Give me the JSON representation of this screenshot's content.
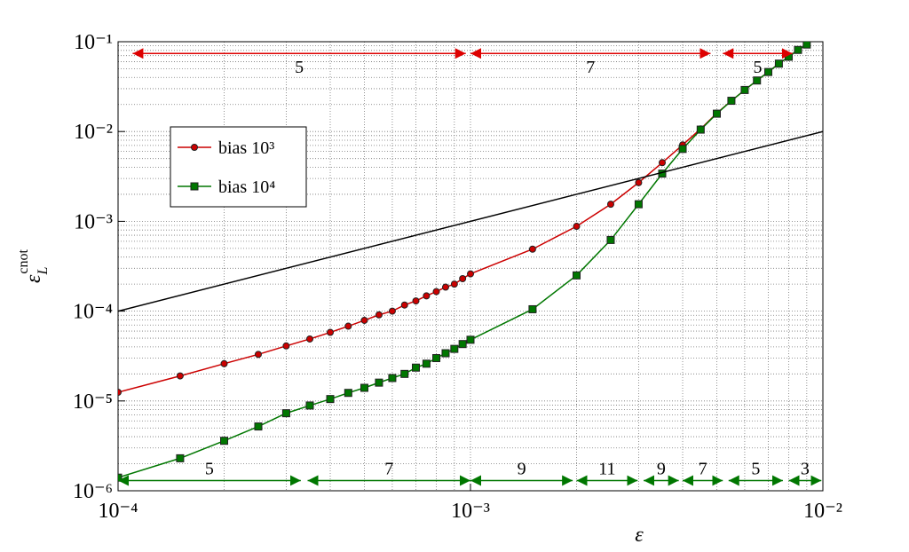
{
  "chart_data": {
    "type": "line",
    "xlabel": "ε",
    "ylabel": {
      "base": "ε",
      "sub": "L",
      "sup": "cnot"
    },
    "log_x": true,
    "log_y": true,
    "grid": true,
    "minor_grid": true,
    "legend": "upper left",
    "xlim": [
      0.0001,
      0.01
    ],
    "ylim": [
      1e-06,
      0.1
    ],
    "xticks": [
      {
        "value": 0.0001,
        "label": "10⁻⁴"
      },
      {
        "value": 0.001,
        "label": "10⁻³"
      },
      {
        "value": 0.01,
        "label": "10⁻²"
      }
    ],
    "yticks": [
      {
        "value": 1e-06,
        "label": "10⁻⁶"
      },
      {
        "value": 1e-05,
        "label": "10⁻⁵"
      },
      {
        "value": 0.0001,
        "label": "10⁻⁴"
      },
      {
        "value": 0.001,
        "label": "10⁻³"
      },
      {
        "value": 0.01,
        "label": "10⁻²"
      },
      {
        "value": 0.1,
        "label": "10⁻¹"
      }
    ],
    "series": [
      {
        "name": "bias 10³",
        "color": "#cc0000",
        "marker": "circle",
        "x": [
          0.0001,
          0.00015,
          0.0002,
          0.00025,
          0.0003,
          0.00035,
          0.0004,
          0.00045,
          0.0005,
          0.00055,
          0.0006,
          0.00065,
          0.0007,
          0.00075,
          0.0008,
          0.00085,
          0.0009,
          0.00095,
          0.001,
          0.0015,
          0.002,
          0.0025,
          0.003,
          0.0035,
          0.004,
          0.0045,
          0.005,
          0.0055,
          0.006,
          0.0065,
          0.007,
          0.0075,
          0.008,
          0.0085,
          0.009
        ],
        "values": [
          1.25e-05,
          1.9e-05,
          2.6e-05,
          3.3e-05,
          4.1e-05,
          4.9e-05,
          5.8e-05,
          6.8e-05,
          7.9e-05,
          9.1e-05,
          0.0001,
          0.000117,
          0.00013,
          0.000148,
          0.000165,
          0.000185,
          0.0002,
          0.00023,
          0.00026,
          0.00049,
          0.00088,
          0.00155,
          0.0027,
          0.0045,
          0.0071,
          0.0107,
          0.016,
          0.022,
          0.029,
          0.037,
          0.046,
          0.057,
          0.068,
          0.081,
          0.093
        ]
      },
      {
        "name": "bias 10⁴",
        "color": "#007700",
        "marker": "square",
        "x": [
          0.0001,
          0.00015,
          0.0002,
          0.00025,
          0.0003,
          0.00035,
          0.0004,
          0.00045,
          0.0005,
          0.00055,
          0.0006,
          0.00065,
          0.0007,
          0.00075,
          0.0008,
          0.00085,
          0.0009,
          0.00095,
          0.001,
          0.0015,
          0.002,
          0.0025,
          0.003,
          0.0035,
          0.004,
          0.0045,
          0.005,
          0.0055,
          0.006,
          0.0065,
          0.007,
          0.0075,
          0.008,
          0.0085,
          0.009
        ],
        "values": [
          1.4e-06,
          2.3e-06,
          3.6e-06,
          5.2e-06,
          7.3e-06,
          8.9e-06,
          1.05e-05,
          1.23e-05,
          1.4e-05,
          1.6e-05,
          1.8e-05,
          2e-05,
          2.35e-05,
          2.6e-05,
          3e-05,
          3.4e-05,
          3.8e-05,
          4.3e-05,
          4.8e-05,
          0.000105,
          0.00025,
          0.00062,
          0.00155,
          0.0034,
          0.0064,
          0.0105,
          0.0158,
          0.022,
          0.029,
          0.037,
          0.046,
          0.057,
          0.068,
          0.081,
          0.093
        ]
      },
      {
        "color": "#000000",
        "marker": "none",
        "x": [
          0.0001,
          0.01
        ],
        "values": [
          0.0001,
          0.01
        ]
      }
    ],
    "annotations": [
      {
        "color": "#dd0000",
        "y": 0.074,
        "placement": "below",
        "spans": [
          {
            "from": 0.00011,
            "to": 0.00097,
            "text": "5"
          },
          {
            "from": 0.001,
            "to": 0.0048,
            "text": "7"
          },
          {
            "from": 0.0052,
            "to": 0.0082,
            "text": "5"
          }
        ]
      },
      {
        "color": "#007700",
        "y": 1.3e-06,
        "placement": "above",
        "spans": [
          {
            "from": 0.0001,
            "to": 0.00033,
            "text": "5"
          },
          {
            "from": 0.000345,
            "to": 0.001,
            "text": "7"
          },
          {
            "from": 0.001,
            "to": 0.00195,
            "text": "9"
          },
          {
            "from": 0.002,
            "to": 0.00298,
            "text": "11"
          },
          {
            "from": 0.0031,
            "to": 0.0039,
            "text": "9"
          },
          {
            "from": 0.004,
            "to": 0.0052,
            "text": "7"
          },
          {
            "from": 0.0054,
            "to": 0.0077,
            "text": "5"
          },
          {
            "from": 0.008,
            "to": 0.0099,
            "text": "3"
          }
        ]
      }
    ]
  }
}
